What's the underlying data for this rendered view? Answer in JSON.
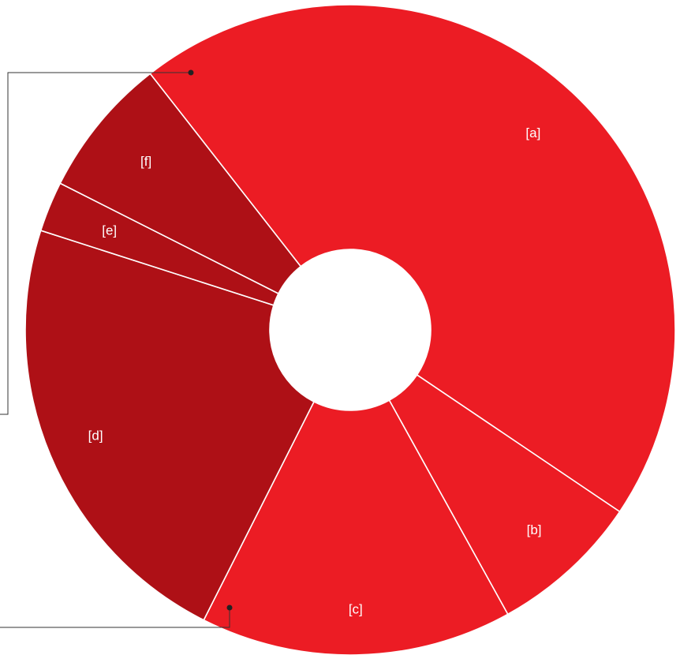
{
  "chart_data": {
    "type": "pie",
    "donut": true,
    "categories": [
      "[a]",
      "[b]",
      "[c]",
      "[d]",
      "[e]",
      "[f]"
    ],
    "values": [
      45.0,
      7.5,
      15.5,
      22.5,
      2.5,
      7.0
    ],
    "colors": [
      "#ec1c24",
      "#ec1c24",
      "#ec1c24",
      "#ae1016",
      "#ae1016",
      "#ae1016"
    ],
    "legend": "none"
  }
}
